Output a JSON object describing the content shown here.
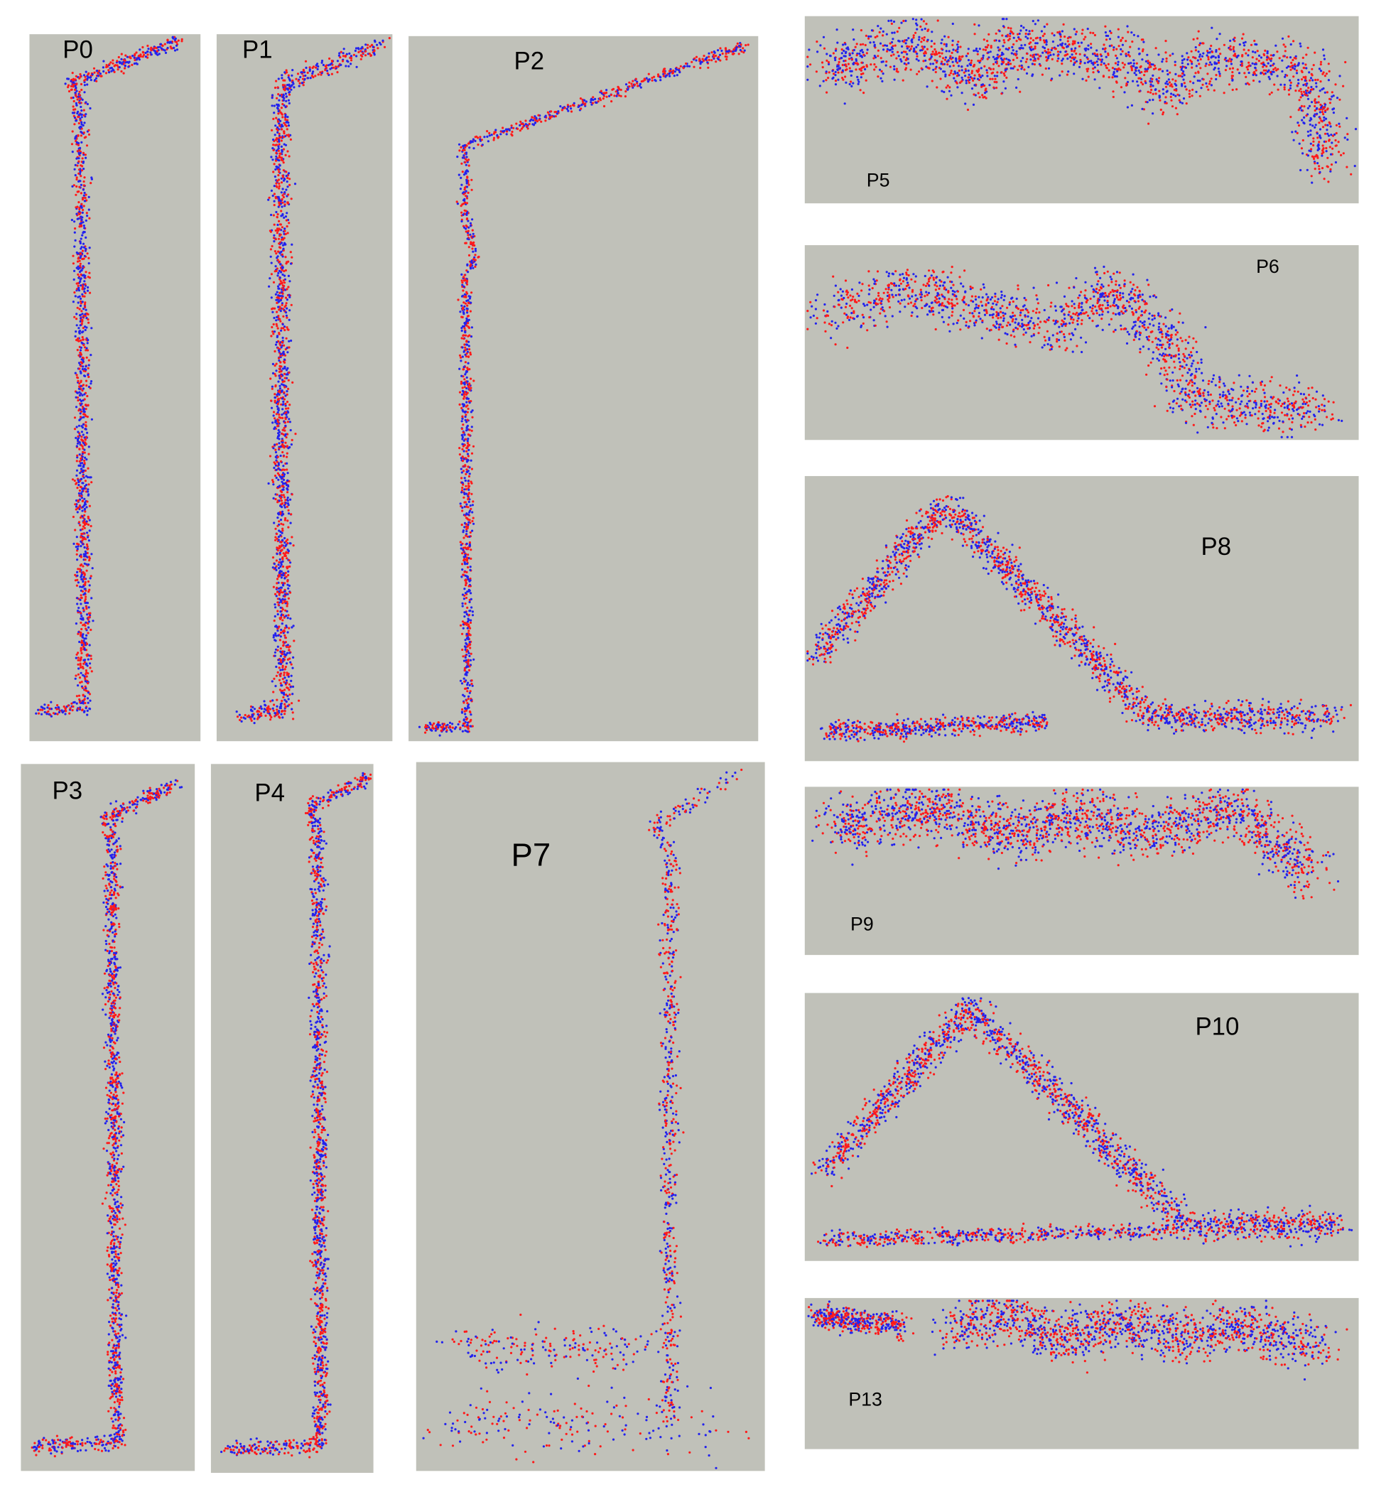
{
  "panels": [
    {
      "label": "P0"
    },
    {
      "label": "P1"
    },
    {
      "label": "P2"
    },
    {
      "label": "P3"
    },
    {
      "label": "P4"
    },
    {
      "label": "P7"
    },
    {
      "label": "P5"
    },
    {
      "label": "P6"
    },
    {
      "label": "P8"
    },
    {
      "label": "P9"
    },
    {
      "label": "P10"
    },
    {
      "label": "P13"
    }
  ]
}
